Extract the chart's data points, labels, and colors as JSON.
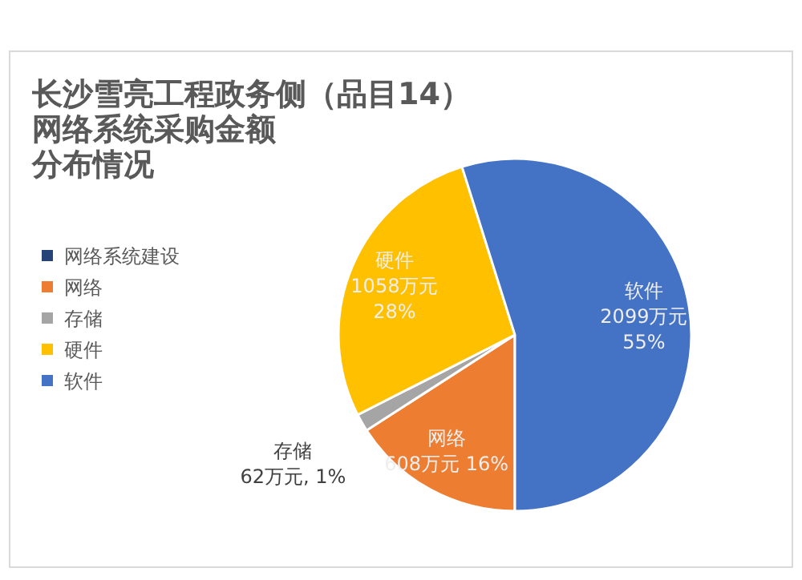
{
  "chart_data": {
    "type": "pie",
    "title": "长沙雪亮工程政务侧（品目14）",
    "subtitle": "网络系统采购金额分布情况",
    "categories": [
      "网络系统建设",
      "网络",
      "存储",
      "硬件",
      "软件"
    ],
    "values": [
      0,
      608,
      62,
      1058,
      2099
    ],
    "colors": [
      "#264478",
      "#ed7d31",
      "#a5a5a5",
      "#ffc000",
      "#4472c4"
    ],
    "value_labels": [
      null,
      "网络\n608万元 16%",
      "存储\n62万元, 1%",
      "硬件\n1058万元\n28%",
      "软件\n2099万元\n55%"
    ],
    "legend": "left"
  }
}
